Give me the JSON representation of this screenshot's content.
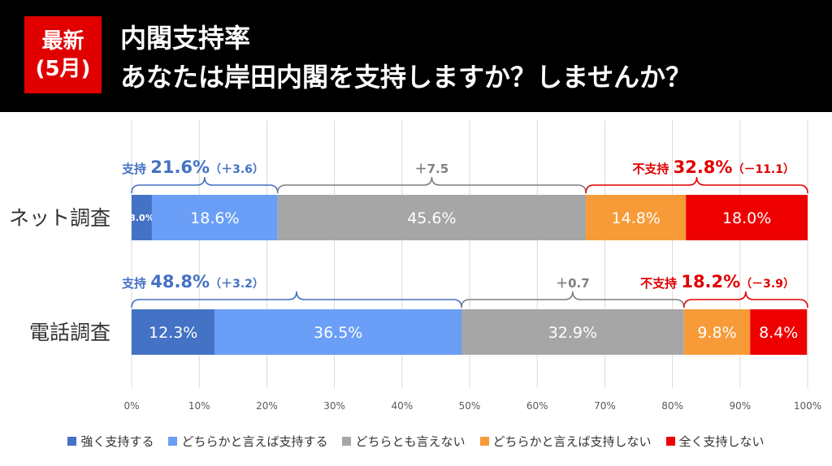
{
  "header": {
    "badge_line1": "最新",
    "badge_line2": "(5月)",
    "title": "内閣支持率",
    "subtitle": "あなたは岸田内閣を支持しますか？しませんか？"
  },
  "colors": {
    "header_bg": "#000000",
    "badge_bg": "#e00000",
    "support": "#4472c4",
    "neutral": "#7f7f7f",
    "oppose": "#e00000"
  },
  "chart_data": {
    "type": "bar",
    "orientation": "horizontal",
    "stacked": true,
    "categories": [
      "ネット調査",
      "電話調査"
    ],
    "series": [
      {
        "name": "強く支持する",
        "color": "#4472c4",
        "values": [
          3.0,
          12.3
        ]
      },
      {
        "name": "どちらかと言えば支持する",
        "color": "#6a9ef7",
        "values": [
          18.6,
          36.5
        ]
      },
      {
        "name": "どちらとも言えない",
        "color": "#a6a6a6",
        "values": [
          45.6,
          32.9
        ]
      },
      {
        "name": "どちらかと言えば支持しない",
        "color": "#f79b38",
        "values": [
          14.8,
          9.8
        ]
      },
      {
        "name": "全く支持しない",
        "color": "#ee0000",
        "values": [
          18.0,
          8.4
        ]
      }
    ],
    "value_labels": [
      [
        "3.0%",
        "18.6%",
        "45.6%",
        "14.8%",
        "18.0%"
      ],
      [
        "12.3%",
        "36.5%",
        "32.9%",
        "9.8%",
        "8.4%"
      ]
    ],
    "xlim": [
      0,
      100
    ],
    "x_ticks": [
      "0%",
      "10%",
      "20%",
      "30%",
      "40%",
      "50%",
      "60%",
      "70%",
      "80%",
      "90%",
      "100%"
    ],
    "grid": true,
    "legend_position": "bottom",
    "annotations": [
      {
        "support_label": "支持",
        "support_value": "21.6%",
        "support_change": "（＋3.6）",
        "neutral_change": "＋7.5",
        "oppose_label": "不支持",
        "oppose_value": "32.8%",
        "oppose_change": "（－11.1）"
      },
      {
        "support_label": "支持",
        "support_value": "48.8%",
        "support_change": "（＋3.2）",
        "neutral_change": "＋0.7",
        "oppose_label": "不支持",
        "oppose_value": "18.2%",
        "oppose_change": "（－3.9）"
      }
    ]
  }
}
